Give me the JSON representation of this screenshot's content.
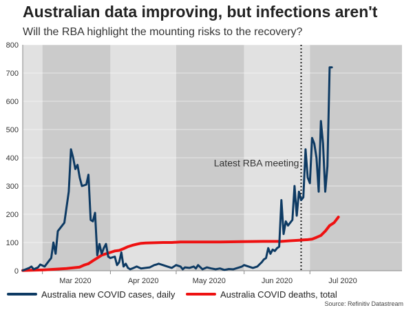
{
  "chart_data": {
    "type": "line",
    "title": "Australian data improving, but infections aren't",
    "subtitle": "Will the RBA highlight the mounting risks to the recovery?",
    "source": "Source: Refinitiv Datastream",
    "annotation": "Latest RBA meeting",
    "annotation_day": 127,
    "x_unit": "day index from 2020-02-21",
    "xlim": [
      0,
      173
    ],
    "ylim": [
      0,
      800
    ],
    "yticks": [
      0,
      100,
      200,
      300,
      400,
      500,
      600,
      700,
      800
    ],
    "month_ticks": [
      {
        "label": "Mar 2020",
        "day": 9
      },
      {
        "label": "Apr 2020",
        "day": 40
      },
      {
        "label": "May 2020",
        "day": 70
      },
      {
        "label": "Jun 2020",
        "day": 101
      },
      {
        "label": "Jul 2020",
        "day": 131
      }
    ],
    "month_centers": [
      {
        "label": "Mar 2020",
        "day": 24
      },
      {
        "label": "Apr 2020",
        "day": 55
      },
      {
        "label": "May 2020",
        "day": 85
      },
      {
        "label": "Jun 2020",
        "day": 116
      },
      {
        "label": "Jul 2020",
        "day": 146
      }
    ],
    "colors": {
      "cases": "#0d3a63",
      "deaths": "#ee1111",
      "band_light": "#e1e1e1",
      "band_dark": "#cbcbcb",
      "dotted": "#222222"
    },
    "series": [
      {
        "name": "Australia new COVID cases, daily",
        "color": "#0d3a63",
        "points": [
          [
            0,
            1
          ],
          [
            3,
            10
          ],
          [
            4,
            15
          ],
          [
            5,
            5
          ],
          [
            7,
            12
          ],
          [
            8,
            22
          ],
          [
            10,
            15
          ],
          [
            12,
            35
          ],
          [
            13,
            45
          ],
          [
            14,
            100
          ],
          [
            15,
            60
          ],
          [
            16,
            140
          ],
          [
            18,
            160
          ],
          [
            19,
            170
          ],
          [
            21,
            280
          ],
          [
            22,
            430
          ],
          [
            23,
            400
          ],
          [
            24,
            360
          ],
          [
            25,
            375
          ],
          [
            26,
            330
          ],
          [
            27,
            300
          ],
          [
            29,
            305
          ],
          [
            30,
            340
          ],
          [
            31,
            180
          ],
          [
            32,
            175
          ],
          [
            33,
            205
          ],
          [
            34,
            55
          ],
          [
            35,
            95
          ],
          [
            36,
            60
          ],
          [
            37,
            80
          ],
          [
            38,
            95
          ],
          [
            39,
            50
          ],
          [
            40,
            45
          ],
          [
            42,
            50
          ],
          [
            43,
            20
          ],
          [
            44,
            30
          ],
          [
            45,
            65
          ],
          [
            46,
            15
          ],
          [
            47,
            25
          ],
          [
            48,
            10
          ],
          [
            49,
            5
          ],
          [
            50,
            8
          ],
          [
            52,
            15
          ],
          [
            54,
            8
          ],
          [
            56,
            10
          ],
          [
            58,
            12
          ],
          [
            60,
            20
          ],
          [
            61,
            22
          ],
          [
            62,
            25
          ],
          [
            64,
            20
          ],
          [
            66,
            15
          ],
          [
            68,
            10
          ],
          [
            70,
            20
          ],
          [
            72,
            15
          ],
          [
            73,
            5
          ],
          [
            74,
            12
          ],
          [
            76,
            10
          ],
          [
            78,
            15
          ],
          [
            79,
            8
          ],
          [
            80,
            20
          ],
          [
            82,
            5
          ],
          [
            84,
            12
          ],
          [
            86,
            8
          ],
          [
            88,
            5
          ],
          [
            90,
            8
          ],
          [
            92,
            3
          ],
          [
            94,
            6
          ],
          [
            96,
            5
          ],
          [
            98,
            10
          ],
          [
            100,
            15
          ],
          [
            101,
            20
          ],
          [
            103,
            15
          ],
          [
            105,
            10
          ],
          [
            107,
            15
          ],
          [
            109,
            30
          ],
          [
            110,
            40
          ],
          [
            111,
            45
          ],
          [
            112,
            80
          ],
          [
            113,
            60
          ],
          [
            114,
            75
          ],
          [
            115,
            70
          ],
          [
            116,
            80
          ],
          [
            117,
            85
          ],
          [
            118,
            250
          ],
          [
            119,
            130
          ],
          [
            120,
            175
          ],
          [
            121,
            160
          ],
          [
            123,
            180
          ],
          [
            124,
            300
          ],
          [
            125,
            195
          ],
          [
            126,
            280
          ],
          [
            127,
            250
          ],
          [
            128,
            260
          ],
          [
            129,
            430
          ],
          [
            130,
            330
          ],
          [
            131,
            310
          ],
          [
            132,
            470
          ],
          [
            133,
            450
          ],
          [
            134,
            400
          ],
          [
            135,
            280
          ],
          [
            136,
            530
          ],
          [
            137,
            450
          ],
          [
            138,
            280
          ],
          [
            139,
            370
          ],
          [
            140,
            720
          ],
          [
            141,
            720
          ]
        ]
      },
      {
        "name": "Australia COVID deaths, total",
        "color": "#ee1111",
        "points": [
          [
            0,
            1
          ],
          [
            10,
            3
          ],
          [
            20,
            8
          ],
          [
            26,
            13
          ],
          [
            28,
            20
          ],
          [
            30,
            25
          ],
          [
            32,
            35
          ],
          [
            34,
            45
          ],
          [
            36,
            55
          ],
          [
            38,
            60
          ],
          [
            40,
            65
          ],
          [
            42,
            70
          ],
          [
            44,
            72
          ],
          [
            46,
            78
          ],
          [
            48,
            85
          ],
          [
            50,
            90
          ],
          [
            52,
            94
          ],
          [
            54,
            97
          ],
          [
            56,
            98
          ],
          [
            60,
            99
          ],
          [
            64,
            100
          ],
          [
            68,
            100
          ],
          [
            72,
            102
          ],
          [
            76,
            102
          ],
          [
            80,
            102
          ],
          [
            90,
            102
          ],
          [
            100,
            103
          ],
          [
            110,
            104
          ],
          [
            118,
            104
          ],
          [
            122,
            106
          ],
          [
            126,
            108
          ],
          [
            128,
            109
          ],
          [
            130,
            110
          ],
          [
            132,
            112
          ],
          [
            134,
            118
          ],
          [
            136,
            125
          ],
          [
            138,
            140
          ],
          [
            140,
            160
          ],
          [
            142,
            170
          ],
          [
            143,
            180
          ],
          [
            144,
            190
          ]
        ]
      }
    ]
  }
}
